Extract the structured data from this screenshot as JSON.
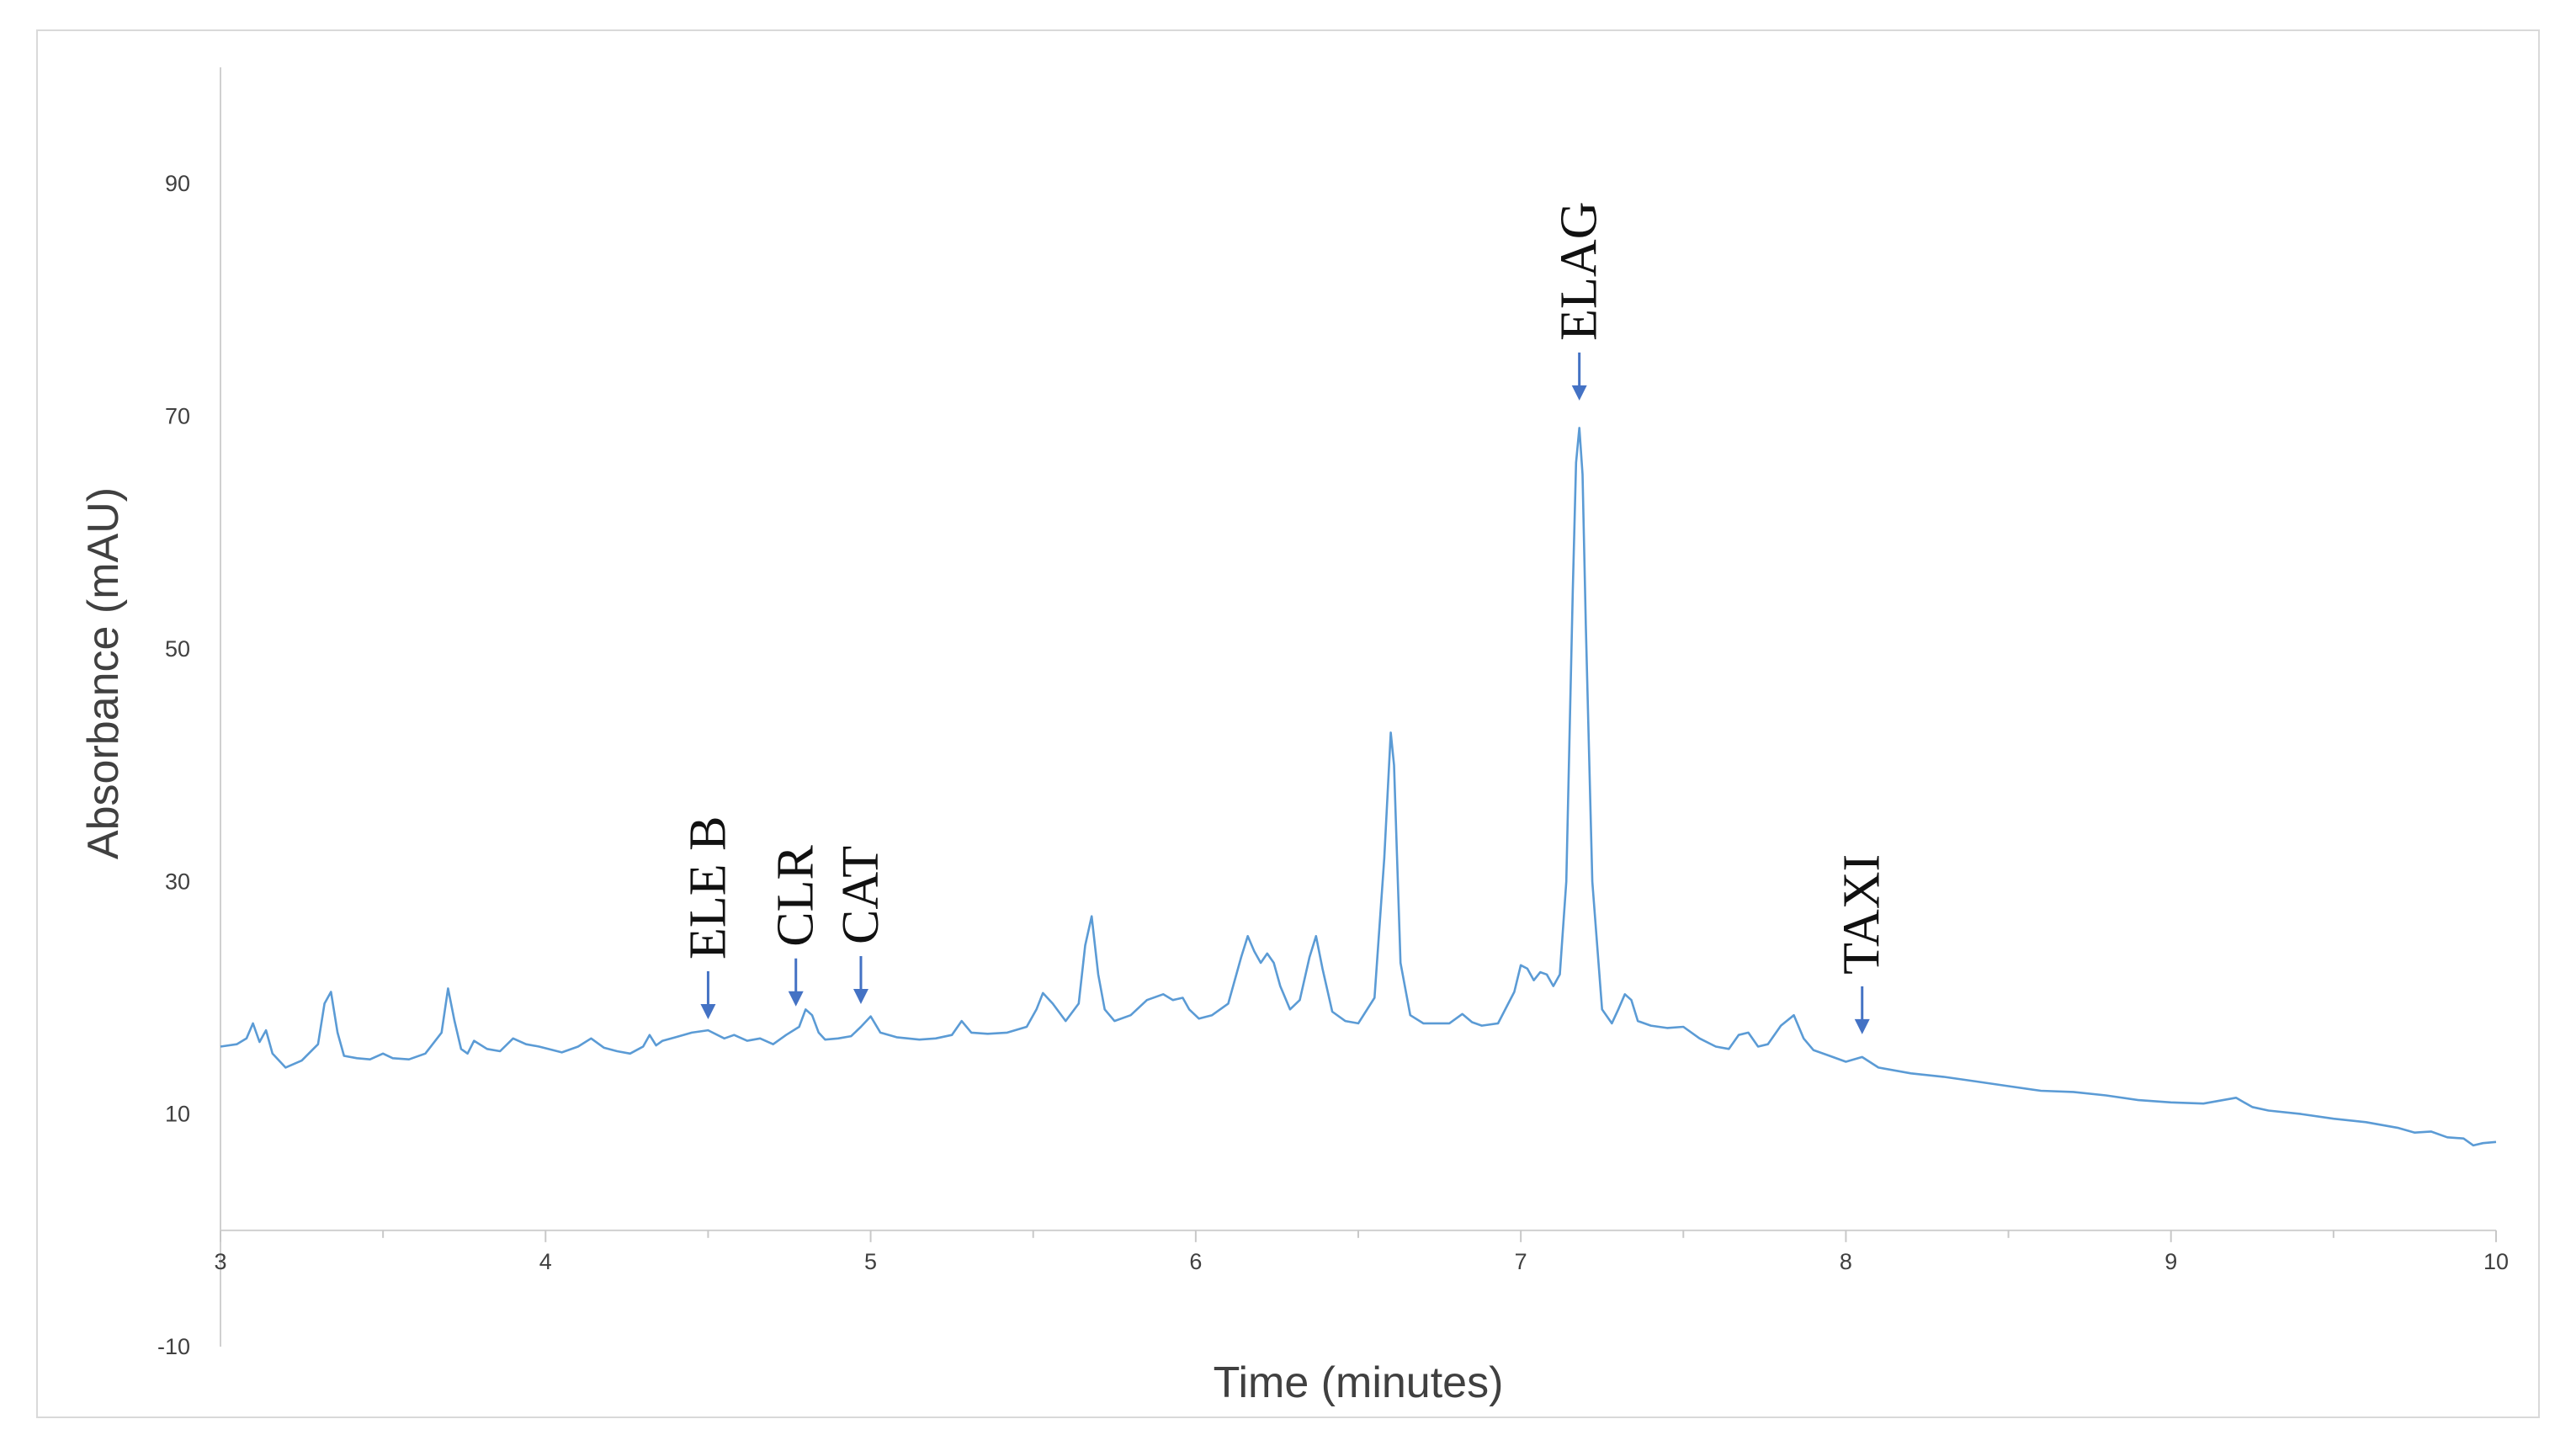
{
  "chart_data": {
    "type": "line",
    "xlabel": "Time (minutes)",
    "ylabel": "Absorbance (mAU)",
    "xlim": [
      3,
      10
    ],
    "ylim": [
      -10,
      100
    ],
    "x_ticks": [
      3,
      4,
      5,
      6,
      7,
      8,
      9,
      10
    ],
    "y_ticks": [
      -10,
      10,
      30,
      50,
      70,
      90
    ],
    "grid": false,
    "line_color": "#5b9bd5",
    "annotation_color": "#4472c4",
    "series": [
      {
        "x": [
          3.0,
          3.05,
          3.08,
          3.1,
          3.12,
          3.14,
          3.16,
          3.2,
          3.25,
          3.3,
          3.32,
          3.34,
          3.36,
          3.38,
          3.42,
          3.46,
          3.5,
          3.53,
          3.58,
          3.63,
          3.68,
          3.7,
          3.72,
          3.74,
          3.76,
          3.78,
          3.82,
          3.86,
          3.9,
          3.94,
          3.98,
          4.05,
          4.1,
          4.14,
          4.18,
          4.22,
          4.26,
          4.3,
          4.32,
          4.34,
          4.36,
          4.4,
          4.45,
          4.5,
          4.55,
          4.58,
          4.62,
          4.66,
          4.7,
          4.74,
          4.78,
          4.8,
          4.82,
          4.84,
          4.86,
          4.9,
          4.94,
          4.97,
          5.0,
          5.03,
          5.08,
          5.15,
          5.2,
          5.25,
          5.28,
          5.31,
          5.36,
          5.42,
          5.48,
          5.51,
          5.53,
          5.56,
          5.6,
          5.64,
          5.66,
          5.68,
          5.7,
          5.72,
          5.75,
          5.8,
          5.85,
          5.9,
          5.93,
          5.96,
          5.98,
          6.01,
          6.05,
          6.1,
          6.14,
          6.16,
          6.18,
          6.2,
          6.22,
          6.24,
          6.26,
          6.29,
          6.32,
          6.35,
          6.37,
          6.39,
          6.42,
          6.46,
          6.5,
          6.55,
          6.58,
          6.6,
          6.61,
          6.63,
          6.66,
          6.7,
          6.78,
          6.82,
          6.85,
          6.88,
          6.93,
          6.98,
          7.0,
          7.02,
          7.04,
          7.06,
          7.08,
          7.1,
          7.12,
          7.14,
          7.16,
          7.17,
          7.18,
          7.19,
          7.2,
          7.22,
          7.25,
          7.28,
          7.3,
          7.32,
          7.34,
          7.36,
          7.4,
          7.45,
          7.5,
          7.55,
          7.6,
          7.64,
          7.67,
          7.7,
          7.73,
          7.76,
          7.8,
          7.84,
          7.87,
          7.9,
          7.95,
          8.0,
          8.05,
          8.1,
          8.2,
          8.3,
          8.4,
          8.5,
          8.6,
          8.7,
          8.8,
          8.9,
          9.0,
          9.1,
          9.2,
          9.25,
          9.3,
          9.4,
          9.5,
          9.6,
          9.7,
          9.75,
          9.8,
          9.85,
          9.9,
          9.93,
          9.96,
          10.0
        ],
        "y": [
          15.8,
          16.0,
          16.5,
          17.8,
          16.2,
          17.2,
          15.2,
          14.0,
          14.6,
          16.0,
          19.5,
          20.5,
          17.0,
          15.0,
          14.8,
          14.7,
          15.2,
          14.8,
          14.7,
          15.2,
          17.0,
          20.8,
          18.0,
          15.6,
          15.2,
          16.3,
          15.6,
          15.4,
          16.5,
          16.0,
          15.8,
          15.3,
          15.8,
          16.5,
          15.7,
          15.4,
          15.2,
          15.8,
          16.8,
          15.9,
          16.3,
          16.6,
          17.0,
          17.2,
          16.5,
          16.8,
          16.3,
          16.5,
          16.0,
          16.8,
          17.5,
          19.0,
          18.5,
          17.0,
          16.4,
          16.5,
          16.7,
          17.5,
          18.4,
          17.0,
          16.6,
          16.4,
          16.5,
          16.8,
          18.0,
          17.0,
          16.9,
          17.0,
          17.5,
          19.0,
          20.4,
          19.5,
          18.0,
          19.5,
          24.5,
          27.0,
          22.0,
          19.0,
          18.0,
          18.5,
          19.8,
          20.3,
          19.8,
          20.0,
          19.0,
          18.2,
          18.5,
          19.5,
          23.5,
          25.3,
          24.0,
          23.0,
          23.8,
          23.0,
          21.0,
          19.0,
          19.8,
          23.5,
          25.3,
          22.5,
          18.8,
          18.0,
          17.8,
          20.0,
          32.0,
          42.8,
          40.0,
          23.0,
          18.5,
          17.8,
          17.8,
          18.6,
          17.9,
          17.6,
          17.8,
          20.5,
          22.8,
          22.5,
          21.5,
          22.2,
          22.0,
          21.0,
          22.0,
          30.0,
          55.0,
          66.0,
          69.0,
          65.0,
          52.0,
          30.0,
          19.0,
          17.8,
          19.0,
          20.3,
          19.8,
          18.0,
          17.6,
          17.4,
          17.5,
          16.5,
          15.8,
          15.6,
          16.8,
          17.0,
          15.8,
          16.0,
          17.6,
          18.5,
          16.5,
          15.5,
          15.0,
          14.5,
          14.9,
          14.0,
          13.5,
          13.2,
          12.8,
          12.4,
          12.0,
          11.9,
          11.6,
          11.2,
          11.0,
          10.9,
          11.4,
          10.6,
          10.3,
          10.0,
          9.6,
          9.3,
          8.8,
          8.4,
          8.5,
          8.0,
          7.9,
          7.3,
          7.5,
          7.6
        ]
      }
    ],
    "annotations": [
      {
        "label": "ELE B",
        "x": 4.5,
        "y": 18.3
      },
      {
        "label": "CLR",
        "x": 4.77,
        "y": 19.4
      },
      {
        "label": "CAT",
        "x": 4.97,
        "y": 19.6
      },
      {
        "label": "ELAG",
        "x": 7.18,
        "y": 71.5
      },
      {
        "label": "TAXI",
        "x": 8.05,
        "y": 17.0
      }
    ]
  }
}
